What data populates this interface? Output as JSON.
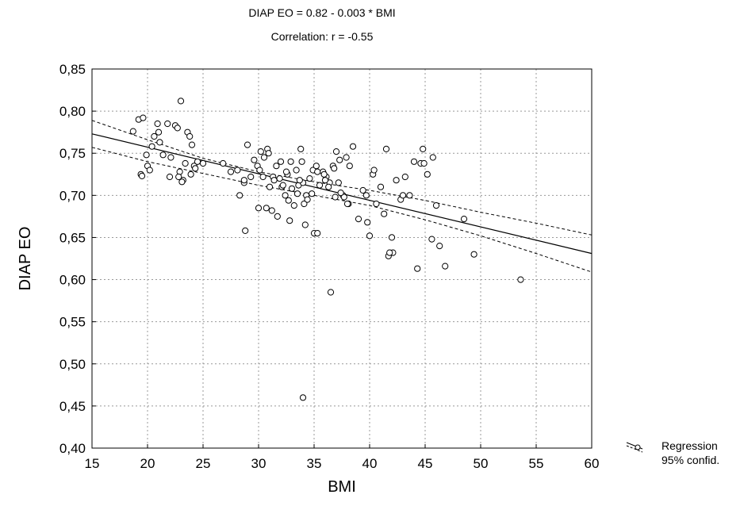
{
  "chart_data": {
    "type": "scatter",
    "title": "DIAP EO = 0.82 - 0.003 * BMI",
    "subtitle": "Correlation: r = -0.55",
    "xlabel": "BMI",
    "ylabel": "DIAP EO",
    "xlim": [
      15,
      60
    ],
    "ylim": [
      0.4,
      0.85
    ],
    "x_ticks": [
      "15",
      "20",
      "25",
      "30",
      "35",
      "40",
      "45",
      "50",
      "55",
      "60"
    ],
    "y_ticks": [
      "0,40",
      "0,45",
      "0,50",
      "0,55",
      "0,60",
      "0,65",
      "0,70",
      "0,75",
      "0,80",
      "0,85"
    ],
    "grid": true,
    "legend_position": "bottom-right",
    "legend": [
      "Regression",
      "95% confid."
    ],
    "regression": {
      "x": [
        15,
        60
      ],
      "y": [
        0.773,
        0.631
      ]
    },
    "confidence_upper": {
      "x": [
        15,
        20,
        25,
        30,
        35,
        40,
        45,
        50,
        55,
        60
      ],
      "y": [
        0.789,
        0.766,
        0.744,
        0.728,
        0.716,
        0.706,
        0.694,
        0.68,
        0.667,
        0.653
      ]
    },
    "confidence_lower": {
      "x": [
        15,
        20,
        25,
        30,
        35,
        40,
        45,
        50,
        55,
        60
      ],
      "y": [
        0.757,
        0.74,
        0.726,
        0.712,
        0.7,
        0.688,
        0.671,
        0.652,
        0.631,
        0.609
      ]
    },
    "points": {
      "x": [
        18.7,
        19.2,
        19.6,
        19.9,
        19.4,
        19.5,
        20.0,
        20.2,
        20.4,
        20.6,
        20.9,
        21.1,
        21.4,
        21.8,
        22.1,
        22.5,
        22.7,
        23.0,
        22.9,
        23.2,
        23.4,
        23.6,
        23.8,
        24.0,
        24.2,
        24.5,
        25.0,
        22.8,
        23.1,
        23.9,
        24.3,
        21.0,
        22.0,
        26.8,
        27.5,
        28.3,
        28.7,
        29.0,
        29.3,
        29.6,
        29.9,
        30.2,
        30.5,
        30.8,
        31.0,
        31.3,
        31.6,
        31.9,
        32.1,
        32.4,
        32.6,
        32.9,
        33.2,
        33.5,
        33.8,
        34.1,
        34.3,
        34.6,
        34.9,
        35.2,
        35.5,
        35.8,
        36.1,
        36.4,
        36.7,
        37.0,
        37.3,
        37.6,
        37.9,
        38.2,
        38.5,
        30.1,
        30.4,
        30.9,
        31.4,
        32.0,
        32.5,
        33.0,
        33.6,
        34.0,
        34.4,
        34.8,
        35.3,
        35.9,
        36.3,
        36.8,
        37.2,
        37.7,
        38.1,
        28.1,
        28.8,
        30.0,
        30.7,
        31.7,
        32.2,
        32.8,
        33.7,
        34.2,
        35.0,
        36.0,
        28.7,
        33.9,
        35.3,
        36.5,
        34.0,
        39.0,
        39.4,
        39.7,
        40.0,
        40.3,
        40.6,
        41.0,
        41.3,
        41.7,
        42.0,
        42.4,
        42.8,
        43.2,
        43.6,
        44.0,
        44.3,
        44.6,
        44.9,
        45.2,
        45.6,
        46.0,
        46.3,
        46.8,
        41.5,
        42.1,
        43.0,
        44.8,
        45.7,
        48.5,
        49.4,
        39.8,
        40.4,
        41.8,
        53.6,
        37.4,
        38.0,
        36.9,
        31.2,
        32.7,
        33.4
      ],
      "y": [
        0.776,
        0.79,
        0.792,
        0.748,
        0.725,
        0.723,
        0.735,
        0.73,
        0.758,
        0.77,
        0.785,
        0.763,
        0.748,
        0.785,
        0.745,
        0.783,
        0.78,
        0.812,
        0.728,
        0.718,
        0.738,
        0.775,
        0.77,
        0.76,
        0.735,
        0.74,
        0.738,
        0.722,
        0.716,
        0.725,
        0.732,
        0.775,
        0.722,
        0.738,
        0.728,
        0.7,
        0.715,
        0.76,
        0.722,
        0.742,
        0.735,
        0.752,
        0.745,
        0.755,
        0.71,
        0.722,
        0.735,
        0.72,
        0.71,
        0.7,
        0.725,
        0.74,
        0.688,
        0.702,
        0.755,
        0.69,
        0.7,
        0.72,
        0.73,
        0.735,
        0.712,
        0.728,
        0.722,
        0.715,
        0.735,
        0.752,
        0.742,
        0.7,
        0.745,
        0.735,
        0.758,
        0.73,
        0.722,
        0.75,
        0.718,
        0.74,
        0.728,
        0.708,
        0.712,
        0.715,
        0.695,
        0.702,
        0.728,
        0.725,
        0.71,
        0.732,
        0.715,
        0.698,
        0.69,
        0.73,
        0.658,
        0.685,
        0.685,
        0.675,
        0.712,
        0.67,
        0.718,
        0.665,
        0.655,
        0.718,
        0.718,
        0.74,
        0.655,
        0.585,
        0.46,
        0.672,
        0.706,
        0.7,
        0.652,
        0.725,
        0.69,
        0.71,
        0.678,
        0.628,
        0.65,
        0.718,
        0.695,
        0.722,
        0.7,
        0.74,
        0.613,
        0.738,
        0.738,
        0.725,
        0.648,
        0.688,
        0.64,
        0.616,
        0.755,
        0.632,
        0.7,
        0.755,
        0.745,
        0.672,
        0.63,
        0.668,
        0.73,
        0.632,
        0.6,
        0.703,
        0.69,
        0.698,
        0.682,
        0.694,
        0.73
      ]
    }
  }
}
